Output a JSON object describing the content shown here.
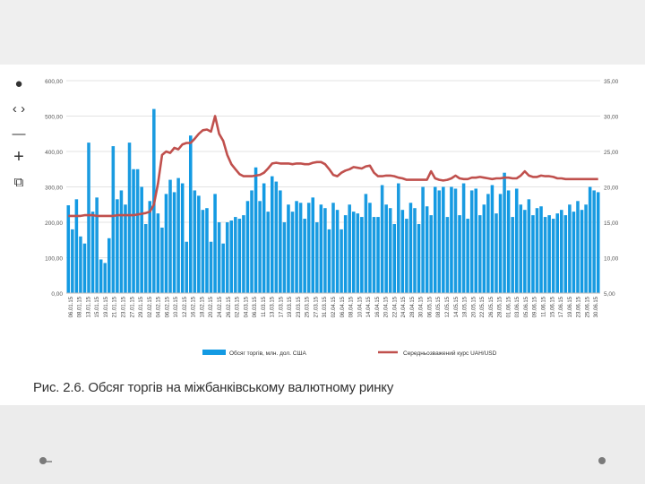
{
  "toolbar": {
    "items": [
      {
        "name": "pointer-tool",
        "glyph": "●"
      },
      {
        "name": "prev-next-tool",
        "glyph": "‹ ›"
      },
      {
        "name": "zoom-out-tool",
        "glyph": "—"
      },
      {
        "name": "zoom-in-tool",
        "glyph": "+"
      },
      {
        "name": "fullscreen-tool",
        "glyph": "⧉"
      }
    ]
  },
  "caption": "Рис. 2.6. Обсяг торгів на міжбанківському валютному ринку",
  "chart_data": {
    "type": "bar",
    "title": "",
    "colors": {
      "bars": "#1b9be0",
      "bars_dark": "#0a6fb3",
      "line": "#c0504d",
      "grid": "#e3e3e3"
    },
    "grid": true,
    "legend_position": "bottom",
    "y_left": {
      "ticks": [
        "0,00",
        "100,00",
        "200,00",
        "300,00",
        "400,00",
        "500,00",
        "600,00"
      ],
      "lim": [
        0,
        600
      ]
    },
    "y_right": {
      "ticks": [
        "5,00",
        "10,00",
        "15,00",
        "20,00",
        "25,00",
        "30,00",
        "35,00"
      ],
      "lim": [
        5,
        35
      ]
    },
    "x_tick_labels": [
      "06.01.15",
      "08.01.15",
      "13.01.15",
      "15.01.15",
      "19.01.15",
      "21.01.15",
      "23.01.15",
      "27.01.15",
      "29.01.15",
      "02.02.15",
      "04.02.15",
      "06.02.15",
      "10.02.15",
      "12.02.15",
      "16.02.15",
      "18.02.15",
      "20.02.15",
      "24.02.15",
      "26.02.15",
      "02.03.15",
      "04.03.15",
      "06.03.15",
      "11.03.15",
      "13.03.15",
      "17.03.15",
      "19.03.15",
      "23.03.15",
      "25.03.15",
      "27.03.15",
      "31.03.15",
      "02.04.15",
      "06.04.15",
      "08.04.15",
      "10.04.15",
      "14.04.15",
      "16.04.15",
      "20.04.15",
      "22.04.15",
      "24.04.15",
      "28.04.15",
      "30.04.15",
      "06.05.15",
      "08.05.15",
      "12.05.15",
      "14.05.15",
      "18.05.15",
      "20.05.15",
      "22.05.15",
      "26.05.15",
      "28.05.15",
      "01.06.15",
      "03.06.15",
      "05.06.15",
      "09.06.15",
      "11.06.15",
      "15.06.15",
      "17.06.15",
      "19.06.15",
      "23.06.15",
      "25.06.15",
      "30.06.15"
    ],
    "series": [
      {
        "name": "Обсяг торгів, млн. дол. США",
        "type": "bar",
        "axis": "left",
        "values": [
          248,
          180,
          265,
          160,
          140,
          425,
          230,
          270,
          95,
          85,
          155,
          415,
          265,
          290,
          250,
          425,
          350,
          350,
          300,
          195,
          260,
          520,
          225,
          185,
          280,
          320,
          285,
          325,
          310,
          145,
          445,
          290,
          275,
          235,
          240,
          145,
          280,
          200,
          140,
          200,
          205,
          215,
          210,
          220,
          260,
          290,
          355,
          260,
          310,
          230,
          330,
          315,
          290,
          200,
          250,
          230,
          260,
          255,
          210,
          255,
          270,
          200,
          250,
          240,
          180,
          255,
          235,
          180,
          220,
          250,
          230,
          225,
          215,
          280,
          255,
          215,
          215,
          305,
          250,
          240,
          195,
          310,
          235,
          210,
          255,
          240,
          195,
          300,
          245,
          220,
          300,
          290,
          300,
          215,
          300,
          295,
          220,
          310,
          210,
          290,
          295,
          220,
          250,
          280,
          305,
          225,
          280,
          340,
          290,
          215,
          295,
          250,
          235,
          265,
          220,
          240,
          245,
          215,
          220,
          210,
          225,
          235,
          220,
          250,
          230,
          260,
          235,
          250,
          300,
          290,
          285
        ]
      },
      {
        "name": "Середньозважений курс UAH/USD",
        "type": "line",
        "axis": "right",
        "values": [
          15.9,
          15.9,
          15.9,
          15.9,
          16.0,
          16.0,
          16.0,
          15.9,
          15.9,
          15.9,
          15.9,
          15.9,
          16.0,
          16.0,
          16.0,
          16.0,
          16.0,
          16.1,
          16.2,
          16.3,
          16.5,
          17.5,
          20.5,
          24.5,
          25.0,
          24.8,
          25.5,
          25.3,
          26.0,
          26.2,
          26.2,
          26.8,
          27.5,
          28.0,
          28.1,
          27.8,
          30.0,
          27.5,
          26.5,
          24.5,
          23.2,
          22.5,
          21.8,
          21.5,
          21.5,
          21.5,
          21.6,
          21.7,
          22.0,
          22.6,
          23.3,
          23.4,
          23.3,
          23.3,
          23.3,
          23.2,
          23.3,
          23.3,
          23.2,
          23.2,
          23.4,
          23.5,
          23.5,
          23.2,
          22.5,
          21.7,
          21.5,
          22.0,
          22.3,
          22.5,
          22.8,
          22.7,
          22.6,
          22.9,
          23.0,
          22.0,
          21.5,
          21.5,
          21.6,
          21.6,
          21.5,
          21.3,
          21.2,
          21.0,
          21.0,
          21.0,
          21.0,
          21.0,
          21.0,
          22.2,
          21.2,
          21.0,
          20.9,
          21.0,
          21.2,
          21.6,
          21.2,
          21.1,
          21.1,
          21.3,
          21.3,
          21.4,
          21.3,
          21.2,
          21.1,
          21.2,
          21.2,
          21.3,
          21.3,
          21.2,
          21.2,
          21.6,
          22.2,
          21.6,
          21.4,
          21.4,
          21.6,
          21.5,
          21.5,
          21.4,
          21.2,
          21.2,
          21.1,
          21.1,
          21.1,
          21.1,
          21.1,
          21.1,
          21.1,
          21.1,
          21.1
        ]
      }
    ]
  }
}
